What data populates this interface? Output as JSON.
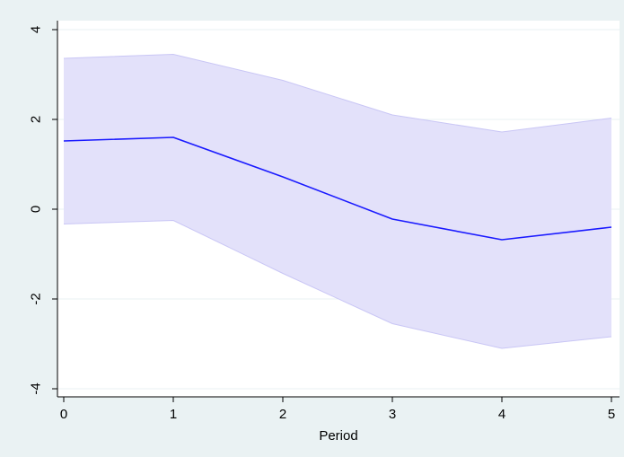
{
  "chart_data": {
    "type": "line",
    "xlabel": "Period",
    "ylabel": "",
    "title": "",
    "x": [
      0,
      1,
      2,
      3,
      4,
      5
    ],
    "series": [
      {
        "values": [
          1.52,
          1.6,
          0.72,
          -0.22,
          -0.68,
          -0.4
        ],
        "color": "#1a1aff"
      }
    ],
    "band": {
      "upper": [
        3.36,
        3.45,
        2.87,
        2.1,
        1.72,
        2.03
      ],
      "lower": [
        -0.33,
        -0.25,
        -1.43,
        -2.55,
        -3.1,
        -2.84
      ],
      "fill": "#e3e1fa",
      "edge": "#c9c6f5"
    },
    "xlim": [
      0,
      5
    ],
    "ylim": [
      -4,
      4
    ],
    "xticks": [
      0,
      1,
      2,
      3,
      4,
      5
    ],
    "yticks": [
      -4,
      -2,
      0,
      2,
      4
    ],
    "ytick_labels": [
      "-4",
      "-2",
      "0",
      "2",
      "4"
    ],
    "grid": true,
    "colors": {
      "outer_background": "#eaf2f3",
      "plot_background": "#ffffff",
      "gridline": "#eaf2f3",
      "axis": "#000000"
    }
  }
}
